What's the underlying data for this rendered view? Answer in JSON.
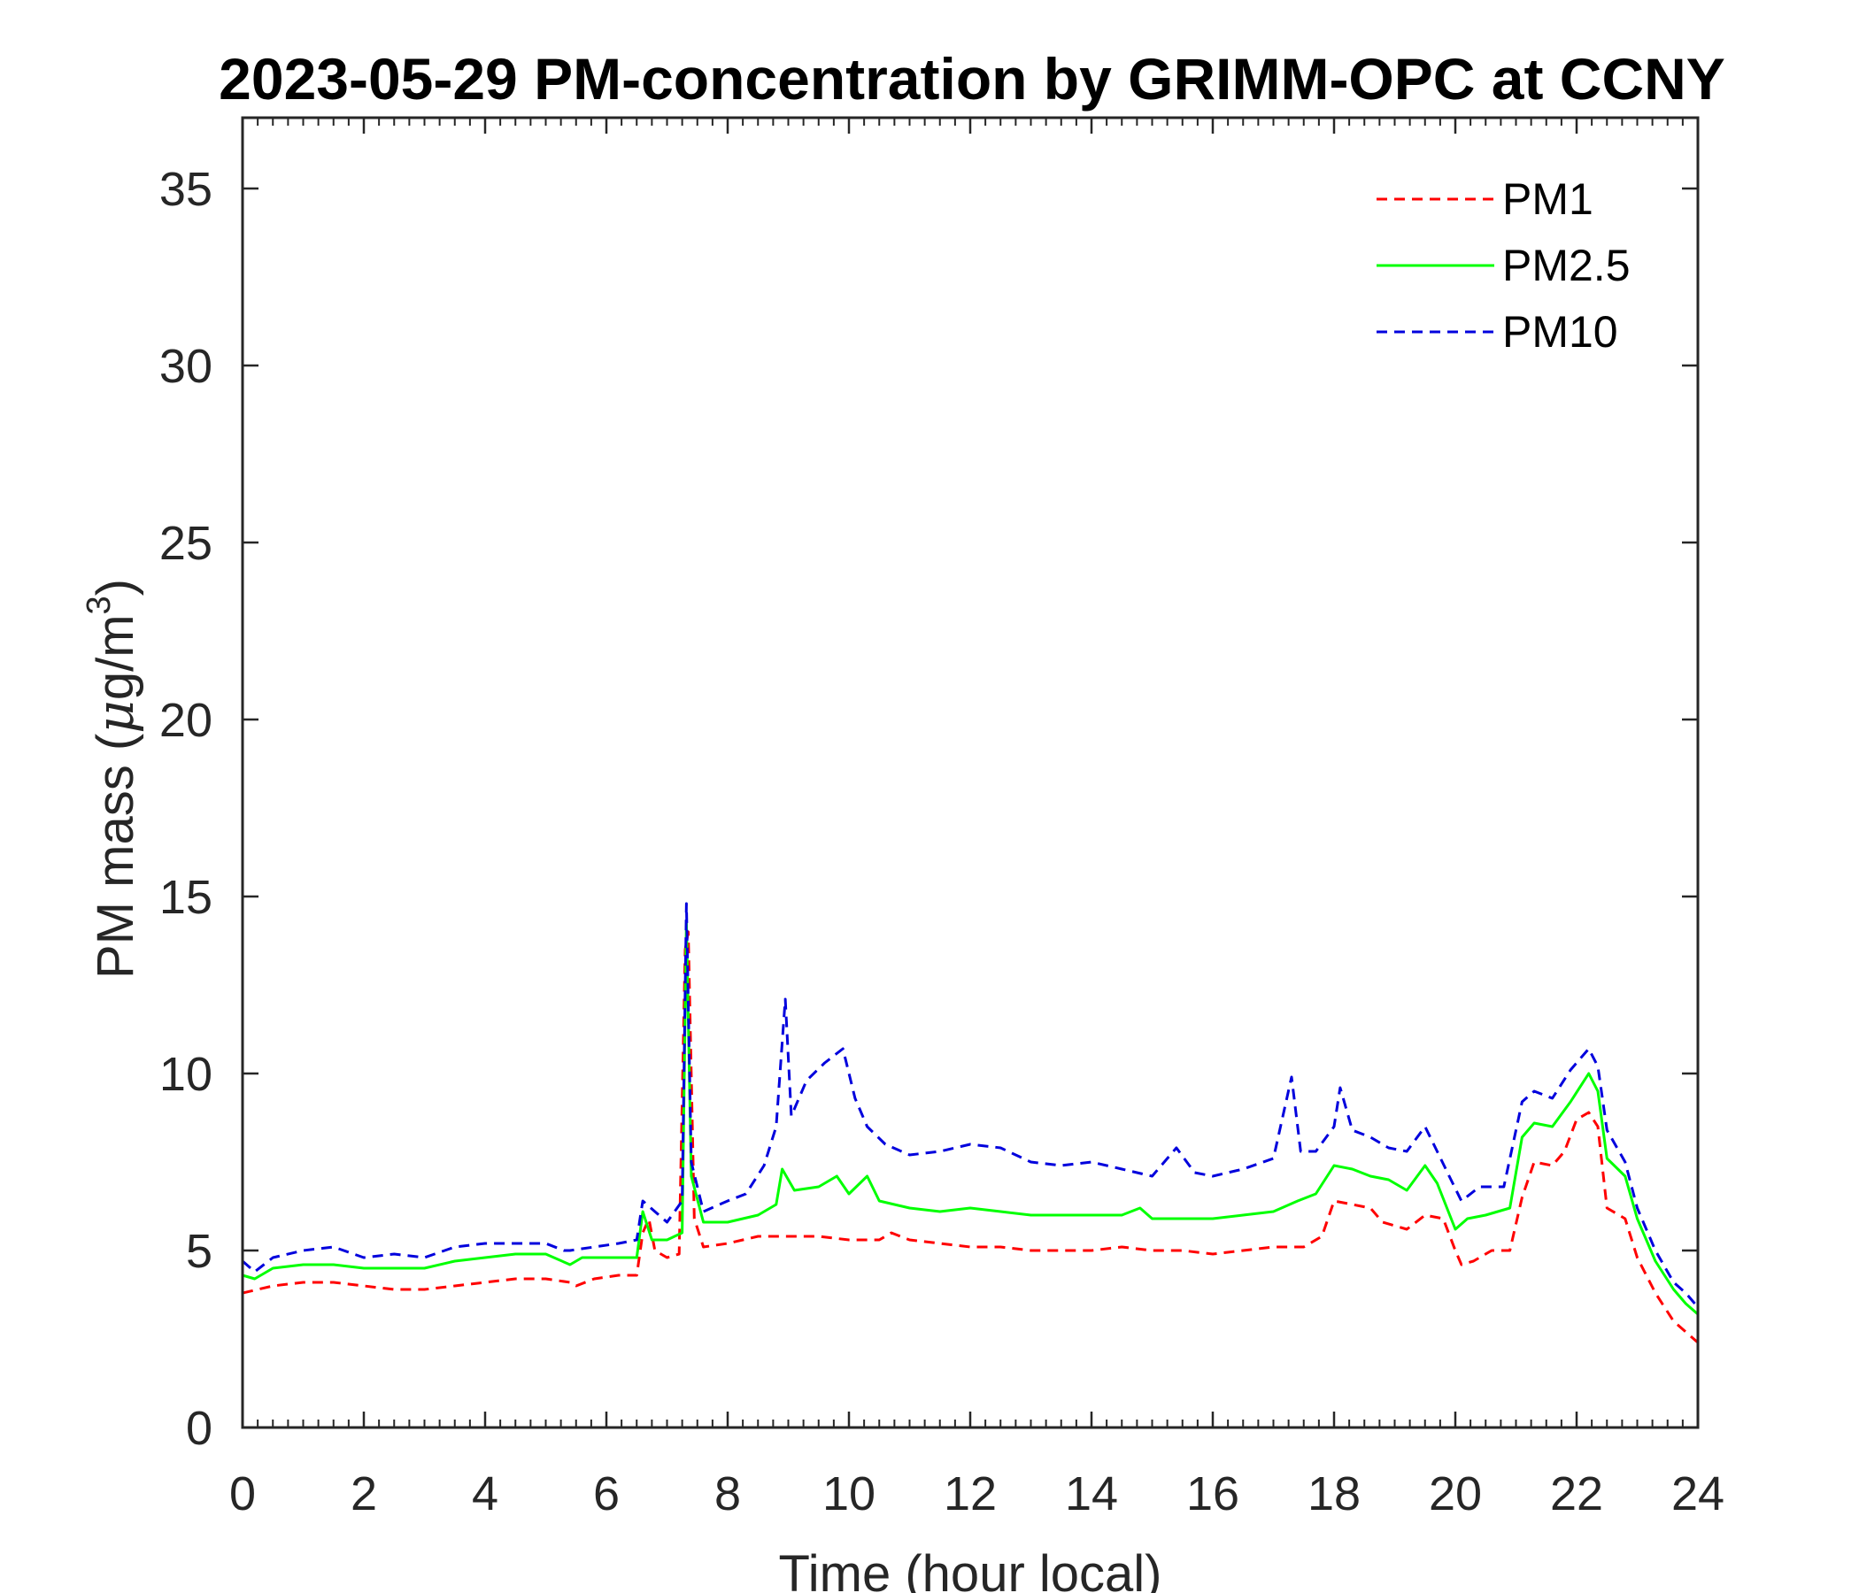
{
  "chart_data": {
    "type": "line",
    "title": "2023-05-29 PM-concentration by GRIMM-OPC at CCNY",
    "xlabel": "Time (hour local)",
    "ylabel": {
      "prefix": "PM mass (",
      "mu": "μ",
      "unit": "g/m",
      "superscript": "3",
      "suffix": ")"
    },
    "xlim": [
      0,
      24
    ],
    "ylim": [
      0,
      37
    ],
    "xticks": [
      0,
      2,
      4,
      6,
      8,
      10,
      12,
      14,
      16,
      18,
      20,
      22,
      24
    ],
    "yticks": [
      0,
      5,
      10,
      15,
      20,
      25,
      30,
      35
    ],
    "grid": false,
    "legend_position": "top-right",
    "series": [
      {
        "name": "PM1",
        "color": "#ff0000",
        "style": "dashed",
        "points": [
          [
            0,
            3.8
          ],
          [
            0.5,
            4.0
          ],
          [
            1,
            4.1
          ],
          [
            1.5,
            4.1
          ],
          [
            2,
            4.0
          ],
          [
            2.5,
            3.9
          ],
          [
            3,
            3.9
          ],
          [
            3.5,
            4.0
          ],
          [
            4,
            4.1
          ],
          [
            4.5,
            4.2
          ],
          [
            5,
            4.2
          ],
          [
            5.4,
            4.1
          ],
          [
            5.5,
            4.0
          ],
          [
            5.8,
            4.2
          ],
          [
            6.2,
            4.3
          ],
          [
            6.5,
            4.3
          ],
          [
            6.6,
            5.5
          ],
          [
            6.7,
            5.9
          ],
          [
            6.8,
            5.0
          ],
          [
            7.0,
            4.8
          ],
          [
            7.2,
            4.9
          ],
          [
            7.3,
            13.5
          ],
          [
            7.35,
            14.0
          ],
          [
            7.45,
            5.9
          ],
          [
            7.6,
            5.1
          ],
          [
            8,
            5.2
          ],
          [
            8.5,
            5.4
          ],
          [
            9,
            5.4
          ],
          [
            9.5,
            5.4
          ],
          [
            10,
            5.3
          ],
          [
            10.5,
            5.3
          ],
          [
            10.7,
            5.5
          ],
          [
            11,
            5.3
          ],
          [
            11.5,
            5.2
          ],
          [
            12,
            5.1
          ],
          [
            12.5,
            5.1
          ],
          [
            13,
            5.0
          ],
          [
            13.5,
            5.0
          ],
          [
            14,
            5.0
          ],
          [
            14.5,
            5.1
          ],
          [
            15,
            5.0
          ],
          [
            15.5,
            5.0
          ],
          [
            16,
            4.9
          ],
          [
            16.5,
            5.0
          ],
          [
            17,
            5.1
          ],
          [
            17.5,
            5.1
          ],
          [
            17.8,
            5.4
          ],
          [
            18,
            6.4
          ],
          [
            18.3,
            6.3
          ],
          [
            18.6,
            6.2
          ],
          [
            18.8,
            5.8
          ],
          [
            19.2,
            5.6
          ],
          [
            19.5,
            6.0
          ],
          [
            19.8,
            5.9
          ],
          [
            20,
            5.0
          ],
          [
            20.1,
            4.6
          ],
          [
            20.3,
            4.7
          ],
          [
            20.6,
            5.0
          ],
          [
            20.9,
            5.0
          ],
          [
            21.1,
            6.5
          ],
          [
            21.3,
            7.5
          ],
          [
            21.6,
            7.4
          ],
          [
            21.8,
            7.8
          ],
          [
            22.0,
            8.7
          ],
          [
            22.2,
            8.9
          ],
          [
            22.35,
            8.5
          ],
          [
            22.5,
            6.2
          ],
          [
            22.8,
            5.9
          ],
          [
            23.0,
            4.8
          ],
          [
            23.3,
            3.8
          ],
          [
            23.6,
            3.0
          ],
          [
            23.8,
            2.7
          ],
          [
            24,
            2.4
          ]
        ]
      },
      {
        "name": "PM2.5",
        "color": "#00ff00",
        "style": "solid",
        "points": [
          [
            0,
            4.3
          ],
          [
            0.2,
            4.2
          ],
          [
            0.5,
            4.5
          ],
          [
            1,
            4.6
          ],
          [
            1.5,
            4.6
          ],
          [
            2,
            4.5
          ],
          [
            2.5,
            4.5
          ],
          [
            3,
            4.5
          ],
          [
            3.5,
            4.7
          ],
          [
            4,
            4.8
          ],
          [
            4.5,
            4.9
          ],
          [
            5,
            4.9
          ],
          [
            5.4,
            4.6
          ],
          [
            5.6,
            4.8
          ],
          [
            6,
            4.8
          ],
          [
            6.5,
            4.8
          ],
          [
            6.6,
            6.1
          ],
          [
            6.75,
            5.3
          ],
          [
            7.0,
            5.3
          ],
          [
            7.25,
            5.5
          ],
          [
            7.32,
            14.3
          ],
          [
            7.4,
            7.1
          ],
          [
            7.6,
            5.8
          ],
          [
            8,
            5.8
          ],
          [
            8.5,
            6.0
          ],
          [
            8.8,
            6.3
          ],
          [
            8.9,
            7.3
          ],
          [
            9.1,
            6.7
          ],
          [
            9.5,
            6.8
          ],
          [
            9.8,
            7.1
          ],
          [
            10,
            6.6
          ],
          [
            10.3,
            7.1
          ],
          [
            10.5,
            6.4
          ],
          [
            11,
            6.2
          ],
          [
            11.5,
            6.1
          ],
          [
            12,
            6.2
          ],
          [
            12.5,
            6.1
          ],
          [
            13,
            6.0
          ],
          [
            13.5,
            6.0
          ],
          [
            14,
            6.0
          ],
          [
            14.5,
            6.0
          ],
          [
            14.8,
            6.2
          ],
          [
            15,
            5.9
          ],
          [
            15.5,
            5.9
          ],
          [
            16,
            5.9
          ],
          [
            16.5,
            6.0
          ],
          [
            17,
            6.1
          ],
          [
            17.4,
            6.4
          ],
          [
            17.7,
            6.6
          ],
          [
            18,
            7.4
          ],
          [
            18.3,
            7.3
          ],
          [
            18.6,
            7.1
          ],
          [
            18.9,
            7.0
          ],
          [
            19.2,
            6.7
          ],
          [
            19.5,
            7.4
          ],
          [
            19.7,
            6.9
          ],
          [
            20.0,
            5.6
          ],
          [
            20.2,
            5.9
          ],
          [
            20.5,
            6.0
          ],
          [
            20.9,
            6.2
          ],
          [
            21.1,
            8.2
          ],
          [
            21.3,
            8.6
          ],
          [
            21.6,
            8.5
          ],
          [
            21.9,
            9.2
          ],
          [
            22.2,
            10.0
          ],
          [
            22.35,
            9.5
          ],
          [
            22.5,
            7.6
          ],
          [
            22.8,
            7.1
          ],
          [
            23.0,
            5.9
          ],
          [
            23.3,
            4.7
          ],
          [
            23.6,
            3.9
          ],
          [
            23.8,
            3.5
          ],
          [
            24,
            3.2
          ]
        ]
      },
      {
        "name": "PM10",
        "color": "#0000dd",
        "style": "dashed",
        "points": [
          [
            0,
            4.7
          ],
          [
            0.2,
            4.4
          ],
          [
            0.5,
            4.8
          ],
          [
            1,
            5.0
          ],
          [
            1.5,
            5.1
          ],
          [
            2,
            4.8
          ],
          [
            2.5,
            4.9
          ],
          [
            3,
            4.8
          ],
          [
            3.5,
            5.1
          ],
          [
            4,
            5.2
          ],
          [
            4.5,
            5.2
          ],
          [
            5,
            5.2
          ],
          [
            5.3,
            5.0
          ],
          [
            5.4,
            5.0
          ],
          [
            5.8,
            5.1
          ],
          [
            6.2,
            5.2
          ],
          [
            6.5,
            5.3
          ],
          [
            6.6,
            6.4
          ],
          [
            6.8,
            6.1
          ],
          [
            7.0,
            5.8
          ],
          [
            7.25,
            6.4
          ],
          [
            7.32,
            14.8
          ],
          [
            7.4,
            7.5
          ],
          [
            7.6,
            6.1
          ],
          [
            8,
            6.4
          ],
          [
            8.3,
            6.6
          ],
          [
            8.6,
            7.4
          ],
          [
            8.8,
            8.5
          ],
          [
            8.95,
            12.1
          ],
          [
            9.05,
            8.8
          ],
          [
            9.3,
            9.8
          ],
          [
            9.6,
            10.3
          ],
          [
            9.9,
            10.7
          ],
          [
            10.1,
            9.3
          ],
          [
            10.3,
            8.5
          ],
          [
            10.6,
            8.0
          ],
          [
            11,
            7.7
          ],
          [
            11.5,
            7.8
          ],
          [
            12,
            8.0
          ],
          [
            12.5,
            7.9
          ],
          [
            13,
            7.5
          ],
          [
            13.5,
            7.4
          ],
          [
            14,
            7.5
          ],
          [
            14.5,
            7.3
          ],
          [
            15,
            7.1
          ],
          [
            15.4,
            7.9
          ],
          [
            15.7,
            7.2
          ],
          [
            16,
            7.1
          ],
          [
            16.5,
            7.3
          ],
          [
            17,
            7.6
          ],
          [
            17.3,
            9.9
          ],
          [
            17.45,
            7.8
          ],
          [
            17.7,
            7.8
          ],
          [
            18,
            8.5
          ],
          [
            18.1,
            9.6
          ],
          [
            18.3,
            8.4
          ],
          [
            18.6,
            8.2
          ],
          [
            18.9,
            7.9
          ],
          [
            19.2,
            7.8
          ],
          [
            19.5,
            8.5
          ],
          [
            19.7,
            7.8
          ],
          [
            19.9,
            7.1
          ],
          [
            20.1,
            6.4
          ],
          [
            20.4,
            6.8
          ],
          [
            20.8,
            6.8
          ],
          [
            21.1,
            9.2
          ],
          [
            21.3,
            9.5
          ],
          [
            21.6,
            9.3
          ],
          [
            21.9,
            10.1
          ],
          [
            22.2,
            10.7
          ],
          [
            22.35,
            10.2
          ],
          [
            22.5,
            8.4
          ],
          [
            22.8,
            7.5
          ],
          [
            23.0,
            6.2
          ],
          [
            23.3,
            5.0
          ],
          [
            23.6,
            4.1
          ],
          [
            23.8,
            3.8
          ],
          [
            24,
            3.4
          ]
        ]
      }
    ]
  }
}
